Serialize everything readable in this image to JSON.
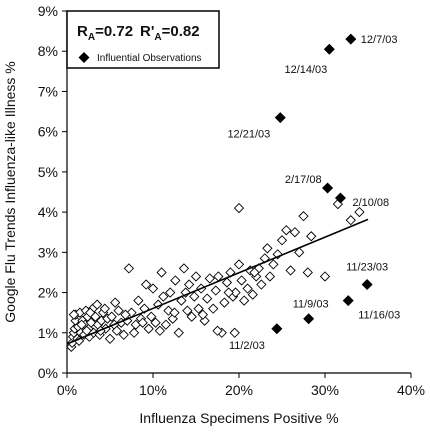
{
  "chart_data": {
    "type": "scatter",
    "xlabel": "Influenza Specimens Positive %",
    "ylabel": "Google Flu Trends Influenza-like Illness %",
    "xlim": [
      0,
      40
    ],
    "ylim": [
      0,
      9
    ],
    "x_ticks": [
      "0%",
      "10%",
      "20%",
      "30%",
      "40%"
    ],
    "y_ticks": [
      "0%",
      "1%",
      "2%",
      "3%",
      "4%",
      "5%",
      "6%",
      "7%",
      "8%",
      "9%"
    ],
    "grid": false,
    "stats": {
      "r_a": "R",
      "r_a_sub": "A",
      "r_a_val": "=0.72",
      "r_prime_a": "R'",
      "r_prime_a_sub": "A",
      "r_prime_a_val": "=0.82"
    },
    "legend": {
      "placement": "top-left",
      "entries": [
        {
          "name": "Influential Observations",
          "marker": "filled-diamond"
        }
      ]
    },
    "trendline": {
      "x": [
        0,
        35
      ],
      "y": [
        0.72,
        3.82
      ]
    },
    "series": [
      {
        "marker": "open-diamond",
        "color": "#000000",
        "points": [
          [
            0.5,
            0.65
          ],
          [
            0.6,
            0.75
          ],
          [
            0.7,
            0.9
          ],
          [
            0.8,
            1.0
          ],
          [
            0.9,
            1.1
          ],
          [
            1.0,
            1.3
          ],
          [
            1.0,
            1.45
          ],
          [
            1.2,
            0.85
          ],
          [
            1.3,
            1.15
          ],
          [
            1.5,
            1.5
          ],
          [
            1.6,
            1.0
          ],
          [
            1.8,
            1.3
          ],
          [
            2.0,
            0.95
          ],
          [
            2.1,
            1.2
          ],
          [
            2.2,
            1.55
          ],
          [
            2.4,
            1.4
          ],
          [
            2.5,
            1.1
          ],
          [
            2.6,
            0.9
          ],
          [
            2.8,
            1.25
          ],
          [
            3.0,
            1.6
          ],
          [
            3.1,
            1.0
          ],
          [
            3.3,
            1.4
          ],
          [
            3.5,
            1.7
          ],
          [
            3.6,
            1.2
          ],
          [
            3.8,
            0.95
          ],
          [
            4.0,
            1.3
          ],
          [
            4.2,
            1.5
          ],
          [
            4.5,
            1.1
          ],
          [
            4.7,
            1.35
          ],
          [
            5.0,
            0.85
          ],
          [
            5.2,
            1.4
          ],
          [
            5.5,
            1.2
          ],
          [
            5.8,
            1.05
          ],
          [
            6.0,
            1.55
          ],
          [
            6.3,
            1.25
          ],
          [
            6.6,
            0.95
          ],
          [
            7.0,
            1.3
          ],
          [
            7.2,
            2.6
          ],
          [
            7.5,
            1.5
          ],
          [
            7.8,
            1.0
          ],
          [
            8.0,
            1.2
          ],
          [
            8.3,
            1.8
          ],
          [
            8.6,
            1.35
          ],
          [
            9.0,
            1.6
          ],
          [
            9.2,
            2.2
          ],
          [
            9.5,
            1.1
          ],
          [
            9.8,
            1.4
          ],
          [
            10.0,
            2.1
          ],
          [
            10.3,
            1.25
          ],
          [
            10.6,
            1.7
          ],
          [
            11.0,
            2.5
          ],
          [
            11.2,
            1.9
          ],
          [
            11.5,
            1.2
          ],
          [
            11.8,
            1.55
          ],
          [
            12.0,
            2.0
          ],
          [
            12.3,
            1.35
          ],
          [
            12.6,
            2.3
          ],
          [
            13.0,
            1.0
          ],
          [
            13.3,
            1.8
          ],
          [
            13.6,
            2.6
          ],
          [
            14.0,
            1.55
          ],
          [
            14.2,
            2.2
          ],
          [
            14.5,
            1.4
          ],
          [
            14.8,
            1.9
          ],
          [
            15.0,
            2.4
          ],
          [
            15.3,
            1.6
          ],
          [
            15.6,
            2.1
          ],
          [
            16.0,
            1.3
          ],
          [
            16.3,
            1.85
          ],
          [
            16.6,
            2.35
          ],
          [
            17.0,
            1.6
          ],
          [
            17.3,
            2.05
          ],
          [
            17.6,
            2.4
          ],
          [
            18.0,
            1.0
          ],
          [
            18.3,
            1.75
          ],
          [
            18.6,
            2.25
          ],
          [
            19.0,
            2.5
          ],
          [
            19.3,
            1.9
          ],
          [
            19.6,
            2.0
          ],
          [
            20.0,
            2.7
          ],
          [
            20.0,
            4.1
          ],
          [
            20.3,
            2.3
          ],
          [
            20.6,
            1.8
          ],
          [
            21.0,
            2.1
          ],
          [
            21.3,
            2.55
          ],
          [
            21.6,
            1.95
          ],
          [
            22.0,
            2.4
          ],
          [
            22.3,
            2.6
          ],
          [
            22.6,
            2.2
          ],
          [
            23.0,
            2.85
          ],
          [
            23.3,
            3.1
          ],
          [
            23.6,
            2.4
          ],
          [
            24.0,
            2.7
          ],
          [
            24.5,
            2.95
          ],
          [
            25.0,
            3.3
          ],
          [
            25.5,
            3.55
          ],
          [
            26.0,
            2.55
          ],
          [
            26.5,
            3.5
          ],
          [
            27.0,
            3.0
          ],
          [
            27.5,
            3.9
          ],
          [
            28.0,
            2.5
          ],
          [
            28.4,
            3.4
          ],
          [
            30.0,
            2.4
          ],
          [
            31.5,
            4.2
          ],
          [
            33.0,
            3.8
          ],
          [
            34.0,
            4.0
          ],
          [
            19.5,
            1.0
          ],
          [
            17.5,
            1.05
          ],
          [
            12.5,
            1.5
          ],
          [
            6.8,
            1.45
          ],
          [
            3.9,
            1.05
          ],
          [
            2.7,
            1.5
          ],
          [
            1.7,
            1.2
          ],
          [
            0.8,
            1.45
          ],
          [
            1.4,
            0.8
          ],
          [
            2.3,
            1.05
          ],
          [
            4.4,
            1.6
          ],
          [
            5.6,
            1.75
          ],
          [
            8.8,
            1.25
          ],
          [
            10.8,
            1.05
          ],
          [
            13.8,
            2.0
          ],
          [
            15.8,
            1.45
          ],
          [
            18.8,
            2.0
          ],
          [
            21.8,
            2.5
          ]
        ]
      },
      {
        "name": "Influential Observations",
        "marker": "filled-diamond",
        "color": "#000000",
        "points": [
          {
            "x": 33.0,
            "y": 8.3,
            "label": "12/7/03"
          },
          {
            "x": 30.5,
            "y": 8.05,
            "label": "12/14/03"
          },
          {
            "x": 24.8,
            "y": 6.35,
            "label": "12/21/03"
          },
          {
            "x": 30.3,
            "y": 4.6,
            "label": "2/17/08"
          },
          {
            "x": 31.8,
            "y": 4.35,
            "label": "2/10/08"
          },
          {
            "x": 34.9,
            "y": 2.2,
            "label": "11/23/03"
          },
          {
            "x": 32.7,
            "y": 1.8,
            "label": "11/16/03"
          },
          {
            "x": 28.1,
            "y": 1.35,
            "label": "11/9/03"
          },
          {
            "x": 24.4,
            "y": 1.1,
            "label": "11/2/03"
          }
        ]
      }
    ]
  }
}
